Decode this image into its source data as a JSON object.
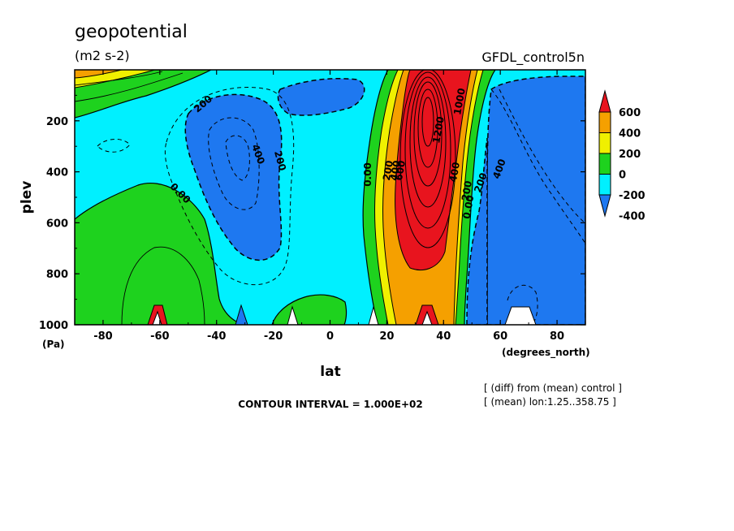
{
  "chart_data": {
    "type": "contour",
    "title": "geopotential",
    "units": "(m2 s-2)",
    "dataset": "GFDL_control5n",
    "xlabel": "lat",
    "xunits": "(degrees_north)",
    "ylabel": "plev",
    "yunits": "(Pa)",
    "xlim": [
      -90,
      90
    ],
    "ylim": [
      1000,
      0
    ],
    "xticks": [
      "-80",
      "-60",
      "-40",
      "-20",
      "0",
      "20",
      "40",
      "60",
      "80"
    ],
    "yticks": [
      "200",
      "400",
      "600",
      "800",
      "1000"
    ],
    "contour_interval_text": "CONTOUR INTERVAL = 1.000E+02",
    "notes": [
      "[ (diff) from (mean) control ]",
      "[ (mean) lon:1.25..358.75 ]"
    ],
    "colorbar": {
      "levels": [
        "600",
        "400",
        "200",
        "0",
        "-200",
        "-400"
      ],
      "colors": [
        "#e8141e",
        "#f5a000",
        "#f0f000",
        "#1ed21e",
        "#00f0ff",
        "#1e78f0"
      ]
    },
    "contour_labels": [
      "200",
      "400",
      "200",
      "0.00",
      "0.00",
      "200",
      "400",
      "600",
      "1200",
      "1000",
      "400",
      "200",
      "0.00",
      "200",
      "400"
    ],
    "features": [
      {
        "type": "max",
        "lat": 34,
        "plev": 200,
        "approx_value": 1300
      },
      {
        "type": "min",
        "lat": -33,
        "plev": 330,
        "approx_value": -500
      },
      {
        "type": "min",
        "lat": 65,
        "plev": 700,
        "approx_value": -500
      }
    ]
  }
}
